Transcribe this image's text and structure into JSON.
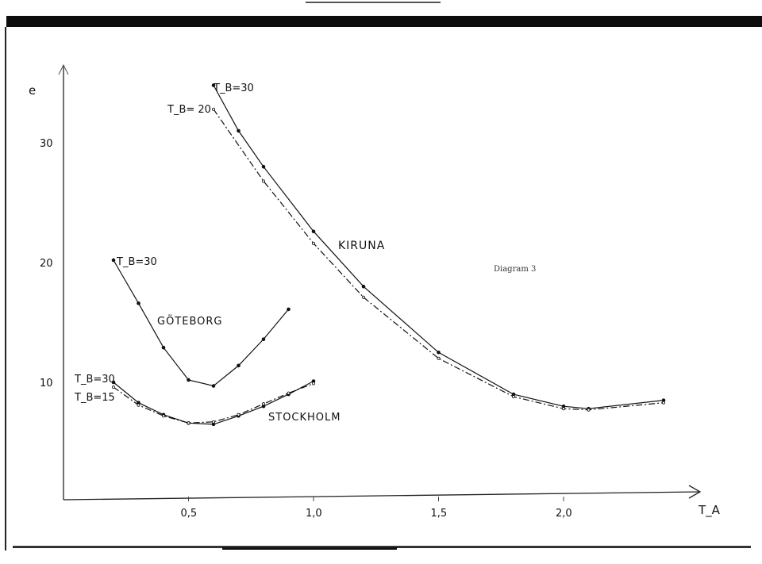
{
  "chart_data": {
    "type": "line",
    "xlabel": "T_A",
    "ylabel": "e",
    "xlim": [
      0,
      2.6
    ],
    "ylim": [
      0,
      36
    ],
    "x_ticks": [
      "0,5",
      "1,0",
      "1,5",
      "2,0"
    ],
    "y_ticks": [
      "10",
      "20",
      "30"
    ],
    "annotation": "Diagram 3",
    "series": [
      {
        "name": "KIRUNA",
        "label": "T_B=30",
        "style": "solid",
        "x": [
          0.6,
          0.7,
          0.8,
          1.0,
          1.2,
          1.5,
          1.8,
          2.0,
          2.1,
          2.4
        ],
        "y": [
          34.8,
          31.0,
          28.0,
          22.6,
          18.0,
          12.5,
          9.0,
          8.0,
          7.8,
          8.5
        ]
      },
      {
        "name": "KIRUNA",
        "label": "T_B= 20",
        "style": "dashed",
        "x": [
          0.6,
          0.8,
          1.0,
          1.2,
          1.5,
          1.8,
          2.0,
          2.1,
          2.4
        ],
        "y": [
          32.8,
          26.8,
          21.6,
          17.1,
          12.0,
          8.8,
          7.8,
          7.7,
          8.3
        ]
      },
      {
        "name": "GÖTEBORG",
        "label": "T_B=30",
        "style": "solid",
        "x": [
          0.2,
          0.3,
          0.4,
          0.5,
          0.6,
          0.7,
          0.8,
          0.9
        ],
        "y": [
          20.2,
          16.6,
          12.9,
          10.2,
          9.7,
          11.4,
          13.6,
          16.1
        ]
      },
      {
        "name": "STOCKHOLM",
        "label": "T_B=30",
        "style": "solid",
        "x": [
          0.2,
          0.3,
          0.4,
          0.5,
          0.6,
          0.7,
          0.8,
          0.9,
          1.0
        ],
        "y": [
          10.0,
          8.3,
          7.3,
          6.6,
          6.5,
          7.2,
          8.0,
          9.0,
          10.1
        ]
      },
      {
        "name": "STOCKHOLM",
        "label": "T_B=15",
        "style": "dashed",
        "x": [
          0.2,
          0.3,
          0.4,
          0.5,
          0.6,
          0.7,
          0.8,
          0.9,
          1.0
        ],
        "y": [
          9.6,
          8.1,
          7.2,
          6.6,
          6.7,
          7.3,
          8.2,
          9.1,
          9.9
        ]
      }
    ]
  }
}
